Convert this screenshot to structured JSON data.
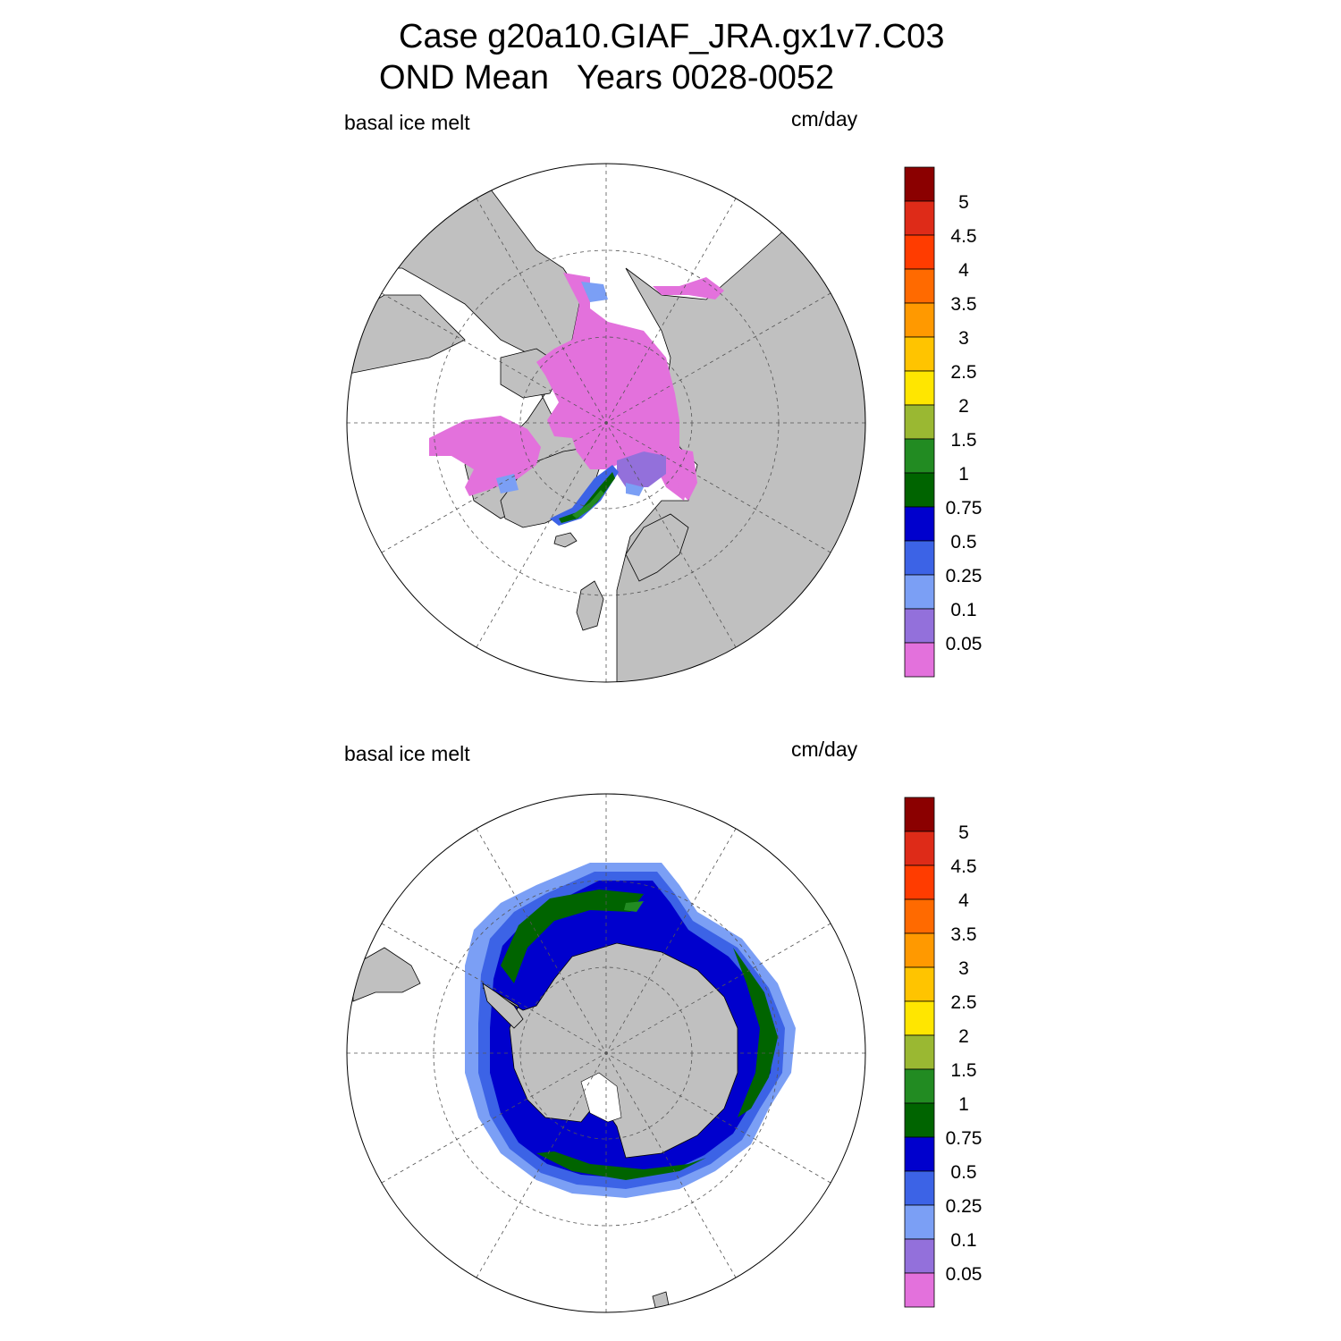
{
  "title_line1": "Case g20a10.GIAF_JRA.gx1v7.C03",
  "title_line2": "OND Mean   Years 0028-0052",
  "panels": [
    {
      "id": "north",
      "hemisphere": "Arctic",
      "variable_label": "basal ice melt",
      "units_label": "cm/day"
    },
    {
      "id": "south",
      "hemisphere": "Antarctic",
      "variable_label": "basal ice melt",
      "units_label": "cm/day"
    }
  ],
  "colorbar": {
    "levels": [
      "5",
      "4.5",
      "4",
      "3.5",
      "3",
      "2.5",
      "2",
      "1.5",
      "1",
      "0.75",
      "0.5",
      "0.25",
      "0.1",
      "0.05"
    ],
    "colors": [
      "#8b0000",
      "#de2b18",
      "#ff3c00",
      "#ff6a00",
      "#ff9900",
      "#ffc400",
      "#ffe600",
      "#9ab832",
      "#228b22",
      "#006400",
      "#0000cd",
      "#3c63e6",
      "#7b9ff5",
      "#9370db",
      "#e371dc"
    ]
  },
  "colors": {
    "land": "#c0c0c0",
    "ocean": "#ffffff",
    "grid": "#555555",
    "outline": "#000000"
  }
}
